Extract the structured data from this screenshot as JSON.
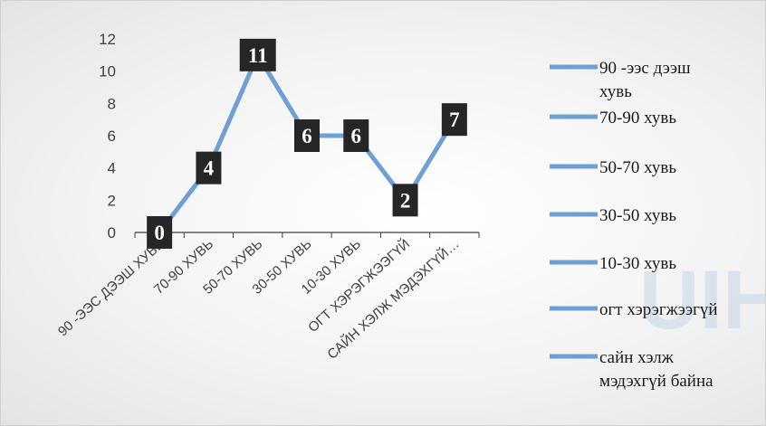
{
  "chart_data": {
    "type": "line",
    "categories": [
      "90 -ЭЭС ДЭЭШ ХУВЬ",
      "70-90 ХУВЬ",
      "50-70 ХУВЬ",
      "30-50 ХУВЬ",
      "10-30 ХУВЬ",
      "ОГТ ХЭРЭГЖЭЭГҮЙ",
      "САЙН ХЭЛЖ МЭДЭХГҮЙ…"
    ],
    "values": [
      0,
      4,
      11,
      6,
      6,
      2,
      7
    ],
    "data_labels": [
      "0",
      "4",
      "11",
      "6",
      "6",
      "2",
      "7"
    ],
    "y_ticks": [
      "0",
      "2",
      "4",
      "6",
      "8",
      "10",
      "12"
    ],
    "ylim": [
      0,
      12
    ],
    "grid": false,
    "legend_position": "right",
    "legend": [
      [
        "90 -ээс дээш",
        "хувь"
      ],
      [
        "70-90 хувь"
      ],
      [
        "50-70 хувь"
      ],
      [
        " 30-50 хувь"
      ],
      [
        "10-30 хувь"
      ],
      [
        "огт хэрэгжээгүй"
      ],
      [
        "сайн хэлж",
        "мэдэхгүй байна"
      ]
    ],
    "colors": {
      "line": "#6fa0d4",
      "label_box": "#262626",
      "label_text": "#ffffff",
      "axis": "#404040"
    }
  },
  "watermark": "UIH"
}
